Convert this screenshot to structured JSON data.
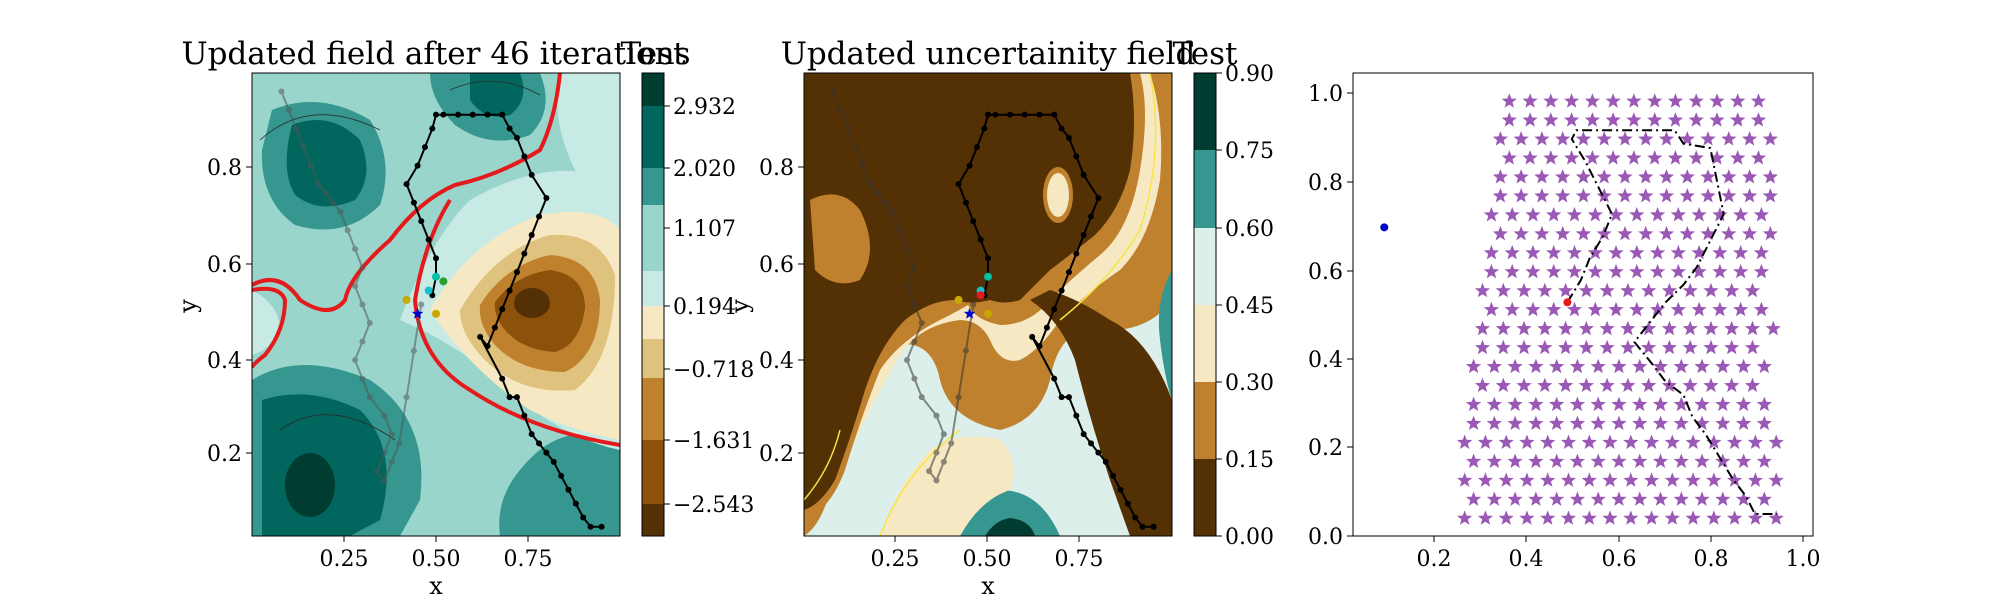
{
  "figure": {
    "background": "#ffffff"
  },
  "chart_data": [
    {
      "type": "contour",
      "title": "Updated field after 46 iterations",
      "xlabel": "x",
      "ylabel": "y",
      "xlim": [
        0.0,
        1.0
      ],
      "ylim": [
        0.0,
        1.0
      ],
      "xticks": [
        "0.25",
        "0.50",
        "0.75"
      ],
      "yticks": [
        "0.2",
        "0.4",
        "0.6",
        "0.8"
      ],
      "colorbar": {
        "title": "Test",
        "tick_labels": [
          "2.932",
          "2.020",
          "1.107",
          "0.194",
          "−0.718",
          "−1.631",
          "−2.543"
        ],
        "levels": [
          2.932,
          2.02,
          1.107,
          0.194,
          -0.718,
          -1.631,
          -2.543
        ],
        "colormap": "BrBG",
        "bands": [
          "#543005",
          "#8c510a",
          "#bf812d",
          "#dfc27d",
          "#f6e8c3",
          "#c7eae5",
          "#80cdc1",
          "#35978f",
          "#01665e",
          "#003c30"
        ]
      },
      "highlight_contour_color": "#e41a1c",
      "paths": [
        {
          "name": "black",
          "color": "#000000",
          "x": [
            0.49,
            0.5,
            0.5,
            0.48,
            0.46,
            0.44,
            0.42,
            0.45,
            0.47,
            0.49,
            0.5,
            0.52,
            0.56,
            0.6,
            0.64,
            0.68,
            0.7,
            0.72,
            0.74,
            0.76,
            0.8,
            0.78,
            0.76,
            0.74,
            0.72,
            0.7,
            0.68,
            0.66,
            0.64,
            0.62,
            0.68,
            0.7,
            0.72,
            0.74,
            0.76,
            0.78,
            0.8,
            0.82,
            0.84,
            0.86,
            0.88,
            0.9,
            0.92,
            0.95
          ],
          "y": [
            0.52,
            0.56,
            0.6,
            0.64,
            0.68,
            0.72,
            0.76,
            0.8,
            0.84,
            0.88,
            0.91,
            0.91,
            0.91,
            0.91,
            0.91,
            0.91,
            0.88,
            0.86,
            0.82,
            0.78,
            0.73,
            0.69,
            0.65,
            0.61,
            0.57,
            0.53,
            0.49,
            0.45,
            0.41,
            0.43,
            0.34,
            0.3,
            0.3,
            0.26,
            0.22,
            0.2,
            0.18,
            0.16,
            0.13,
            0.1,
            0.07,
            0.04,
            0.02,
            0.02
          ]
        },
        {
          "name": "grey",
          "color": "#555555",
          "x": [
            0.08,
            0.1,
            0.12,
            0.14,
            0.16,
            0.18,
            0.2,
            0.22,
            0.24,
            0.26,
            0.28,
            0.3,
            0.28,
            0.3,
            0.32,
            0.3,
            0.28,
            0.3,
            0.32,
            0.36,
            0.38,
            0.36,
            0.34,
            0.36,
            0.38,
            0.4,
            0.42,
            0.44,
            0.46
          ],
          "y": [
            0.96,
            0.92,
            0.88,
            0.84,
            0.8,
            0.76,
            0.74,
            0.72,
            0.7,
            0.66,
            0.62,
            0.58,
            0.54,
            0.5,
            0.46,
            0.42,
            0.38,
            0.34,
            0.3,
            0.26,
            0.22,
            0.18,
            0.14,
            0.12,
            0.16,
            0.2,
            0.3,
            0.4,
            0.5
          ]
        }
      ],
      "markers": [
        {
          "shape": "star",
          "color": "#0000cc",
          "x": 0.45,
          "y": 0.48
        },
        {
          "shape": "dot",
          "color": "#c8a800",
          "x": 0.42,
          "y": 0.51
        },
        {
          "shape": "dot",
          "color": "#c8a800",
          "x": 0.5,
          "y": 0.48
        },
        {
          "shape": "dot",
          "color": "#00bfa5",
          "x": 0.5,
          "y": 0.56
        },
        {
          "shape": "dot",
          "color": "#17becf",
          "x": 0.48,
          "y": 0.53
        },
        {
          "shape": "dot",
          "color": "#2ca02c",
          "x": 0.52,
          "y": 0.55
        }
      ]
    },
    {
      "type": "contour",
      "title": "Updated uncertainity field",
      "xlabel": "x",
      "ylabel": "y",
      "xlim": [
        0.0,
        1.0
      ],
      "ylim": [
        0.0,
        1.0
      ],
      "xticks": [
        "0.25",
        "0.50",
        "0.75"
      ],
      "yticks": [
        "0.2",
        "0.4",
        "0.6",
        "0.8"
      ],
      "colorbar": {
        "title": "Test",
        "tick_labels": [
          "0.90",
          "0.75",
          "0.60",
          "0.45",
          "0.30",
          "0.15",
          "0.00"
        ],
        "levels": [
          0.9,
          0.75,
          0.6,
          0.45,
          0.3,
          0.15,
          0.0
        ],
        "colormap": "BrBG",
        "bands": [
          "#543005",
          "#bf812d",
          "#f6e8c3",
          "#dcefea",
          "#35978f",
          "#003c30"
        ]
      },
      "paths": [
        {
          "name": "black",
          "color": "#000000",
          "x": [
            0.49,
            0.5,
            0.5,
            0.48,
            0.46,
            0.44,
            0.42,
            0.45,
            0.47,
            0.49,
            0.5,
            0.52,
            0.56,
            0.6,
            0.64,
            0.68,
            0.7,
            0.72,
            0.74,
            0.76,
            0.8,
            0.78,
            0.76,
            0.74,
            0.72,
            0.7,
            0.68,
            0.66,
            0.64,
            0.62,
            0.68,
            0.7,
            0.72,
            0.74,
            0.76,
            0.78,
            0.8,
            0.82,
            0.84,
            0.86,
            0.88,
            0.9,
            0.92,
            0.95
          ],
          "y": [
            0.52,
            0.56,
            0.6,
            0.64,
            0.68,
            0.72,
            0.76,
            0.8,
            0.84,
            0.88,
            0.91,
            0.91,
            0.91,
            0.91,
            0.91,
            0.91,
            0.88,
            0.86,
            0.82,
            0.78,
            0.73,
            0.69,
            0.65,
            0.61,
            0.57,
            0.53,
            0.49,
            0.45,
            0.41,
            0.43,
            0.34,
            0.3,
            0.3,
            0.26,
            0.22,
            0.2,
            0.18,
            0.16,
            0.13,
            0.1,
            0.07,
            0.04,
            0.02,
            0.02
          ]
        },
        {
          "name": "grey",
          "color": "#333333",
          "x": [
            0.08,
            0.1,
            0.12,
            0.14,
            0.16,
            0.18,
            0.2,
            0.22,
            0.24,
            0.26,
            0.28,
            0.3,
            0.28,
            0.3,
            0.32,
            0.3,
            0.28,
            0.3,
            0.32,
            0.36,
            0.38,
            0.36,
            0.34,
            0.36,
            0.38,
            0.4,
            0.42,
            0.44,
            0.46
          ],
          "y": [
            0.96,
            0.92,
            0.88,
            0.84,
            0.8,
            0.76,
            0.74,
            0.72,
            0.7,
            0.66,
            0.62,
            0.58,
            0.54,
            0.5,
            0.46,
            0.42,
            0.38,
            0.34,
            0.3,
            0.26,
            0.22,
            0.18,
            0.14,
            0.12,
            0.16,
            0.2,
            0.3,
            0.4,
            0.5
          ]
        }
      ],
      "markers": [
        {
          "shape": "star",
          "color": "#0000cc",
          "x": 0.45,
          "y": 0.48
        },
        {
          "shape": "dot",
          "color": "#c8a800",
          "x": 0.42,
          "y": 0.51
        },
        {
          "shape": "dot",
          "color": "#c8a800",
          "x": 0.5,
          "y": 0.48
        },
        {
          "shape": "dot",
          "color": "#00bfa5",
          "x": 0.5,
          "y": 0.56
        },
        {
          "shape": "dot",
          "color": "#17becf",
          "x": 0.48,
          "y": 0.53
        },
        {
          "shape": "dot",
          "color": "#e41a1c",
          "x": 0.48,
          "y": 0.52
        }
      ]
    },
    {
      "type": "scatter",
      "title": "",
      "xlabel": "",
      "ylabel": "",
      "xlim": [
        0.0,
        1.03
      ],
      "ylim": [
        -0.01,
        1.04
      ],
      "xticks": [
        "0.2",
        "0.4",
        "0.6",
        "0.8",
        "1.0"
      ],
      "yticks": [
        "0.0",
        "0.2",
        "0.4",
        "0.6",
        "0.8",
        "1.0"
      ],
      "star_grid": {
        "color": "#9b59b6",
        "rows": [
          {
            "y": 0.03,
            "x_start": 0.25,
            "x_end": 0.96
          },
          {
            "y": 0.073,
            "x_start": 0.27,
            "x_end": 0.94
          },
          {
            "y": 0.116,
            "x_start": 0.25,
            "x_end": 0.96
          },
          {
            "y": 0.159,
            "x_start": 0.27,
            "x_end": 0.94
          },
          {
            "y": 0.202,
            "x_start": 0.25,
            "x_end": 0.96
          },
          {
            "y": 0.245,
            "x_start": 0.27,
            "x_end": 0.94
          },
          {
            "y": 0.288,
            "x_start": 0.27,
            "x_end": 0.96
          },
          {
            "y": 0.331,
            "x_start": 0.29,
            "x_end": 0.94
          },
          {
            "y": 0.374,
            "x_start": 0.27,
            "x_end": 0.96
          },
          {
            "y": 0.417,
            "x_start": 0.29,
            "x_end": 0.94
          },
          {
            "y": 0.46,
            "x_start": 0.29,
            "x_end": 0.96
          },
          {
            "y": 0.503,
            "x_start": 0.31,
            "x_end": 0.94
          },
          {
            "y": 0.546,
            "x_start": 0.29,
            "x_end": 0.94
          },
          {
            "y": 0.589,
            "x_start": 0.31,
            "x_end": 0.94
          },
          {
            "y": 0.632,
            "x_start": 0.31,
            "x_end": 0.94
          },
          {
            "y": 0.675,
            "x_start": 0.33,
            "x_end": 0.94
          },
          {
            "y": 0.718,
            "x_start": 0.31,
            "x_end": 0.94
          },
          {
            "y": 0.761,
            "x_start": 0.33,
            "x_end": 0.94
          },
          {
            "y": 0.804,
            "x_start": 0.33,
            "x_end": 0.94
          },
          {
            "y": 0.847,
            "x_start": 0.35,
            "x_end": 0.94
          },
          {
            "y": 0.89,
            "x_start": 0.33,
            "x_end": 0.94
          },
          {
            "y": 0.933,
            "x_start": 0.35,
            "x_end": 0.94
          },
          {
            "y": 0.976,
            "x_start": 0.35,
            "x_end": 0.94
          }
        ],
        "x_step": 0.0465
      },
      "path": {
        "color": "#000000",
        "x": [
          0.48,
          0.51,
          0.53,
          0.56,
          0.58,
          0.55,
          0.52,
          0.49,
          0.5,
          0.72,
          0.74,
          0.8,
          0.83,
          0.8,
          0.77,
          0.74,
          0.7,
          0.63,
          0.67,
          0.7,
          0.74,
          0.76,
          0.79,
          0.82,
          0.85,
          0.88,
          0.9,
          0.95
        ],
        "y": [
          0.52,
          0.57,
          0.62,
          0.67,
          0.72,
          0.78,
          0.84,
          0.89,
          0.91,
          0.91,
          0.88,
          0.87,
          0.72,
          0.66,
          0.6,
          0.56,
          0.52,
          0.43,
          0.38,
          0.34,
          0.31,
          0.26,
          0.22,
          0.17,
          0.12,
          0.08,
          0.04,
          0.04
        ]
      },
      "markers": [
        {
          "shape": "dot",
          "color": "#0000cc",
          "x": 0.07,
          "y": 0.69
        },
        {
          "shape": "dot",
          "color": "#e41a1c",
          "x": 0.48,
          "y": 0.52
        }
      ]
    }
  ]
}
